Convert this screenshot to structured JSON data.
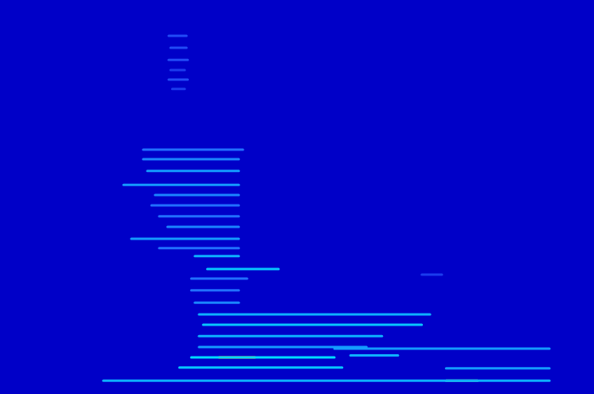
{
  "chart_data": {
    "type": "spectrogram",
    "xlim": [
      0,
      100
    ],
    "ylim": [
      0,
      100
    ],
    "grid": false,
    "tick_labels": false,
    "color_range": [
      0,
      1
    ],
    "streaks": [
      {
        "x": [
          28.4,
          31.4
        ],
        "y": 90.9,
        "value": 0.25
      },
      {
        "x": [
          28.7,
          31.4
        ],
        "y": 87.9,
        "value": 0.25
      },
      {
        "x": [
          28.4,
          31.6
        ],
        "y": 84.8,
        "value": 0.25
      },
      {
        "x": [
          28.7,
          31.1
        ],
        "y": 82.2,
        "value": 0.2
      },
      {
        "x": [
          28.4,
          31.6
        ],
        "y": 79.8,
        "value": 0.25
      },
      {
        "x": [
          29.0,
          31.1
        ],
        "y": 77.4,
        "value": 0.2
      },
      {
        "x": [
          24.1,
          40.9
        ],
        "y": 62.0,
        "value": 0.35
      },
      {
        "x": [
          24.1,
          40.2
        ],
        "y": 59.6,
        "value": 0.4
      },
      {
        "x": [
          24.8,
          40.2
        ],
        "y": 56.6,
        "value": 0.45
      },
      {
        "x": [
          20.8,
          40.2
        ],
        "y": 53.1,
        "value": 0.45
      },
      {
        "x": [
          26.1,
          40.2
        ],
        "y": 50.5,
        "value": 0.4
      },
      {
        "x": [
          25.5,
          40.2
        ],
        "y": 47.9,
        "value": 0.35
      },
      {
        "x": [
          26.8,
          40.2
        ],
        "y": 45.1,
        "value": 0.35
      },
      {
        "x": [
          28.2,
          40.2
        ],
        "y": 42.4,
        "value": 0.4
      },
      {
        "x": [
          22.1,
          40.2
        ],
        "y": 39.4,
        "value": 0.45
      },
      {
        "x": [
          26.8,
          40.2
        ],
        "y": 37.0,
        "value": 0.35
      },
      {
        "x": [
          32.8,
          40.2
        ],
        "y": 35.0,
        "value": 0.5
      },
      {
        "x": [
          34.9,
          46.9
        ],
        "y": 31.7,
        "value": 0.55
      },
      {
        "x": [
          71.0,
          74.4
        ],
        "y": 30.3,
        "value": 0.2
      },
      {
        "x": [
          32.2,
          41.6
        ],
        "y": 29.3,
        "value": 0.35
      },
      {
        "x": [
          32.2,
          40.2
        ],
        "y": 26.3,
        "value": 0.35
      },
      {
        "x": [
          32.8,
          40.2
        ],
        "y": 23.2,
        "value": 0.4
      },
      {
        "x": [
          33.5,
          72.4
        ],
        "y": 20.2,
        "value": 0.5
      },
      {
        "x": [
          34.2,
          71.0
        ],
        "y": 17.6,
        "value": 0.55
      },
      {
        "x": [
          33.5,
          64.3
        ],
        "y": 14.7,
        "value": 0.5
      },
      {
        "x": [
          33.5,
          61.7
        ],
        "y": 11.9,
        "value": 0.45
      },
      {
        "x": [
          56.3,
          92.5
        ],
        "y": 11.5,
        "value": 0.45
      },
      {
        "x": [
          59.0,
          67.0
        ],
        "y": 9.8,
        "value": 0.5
      },
      {
        "x": [
          32.2,
          56.3
        ],
        "y": 9.3,
        "value": 0.6
      },
      {
        "x": [
          36.9,
          42.9
        ],
        "y": 9.3,
        "value": 0.95
      },
      {
        "x": [
          30.2,
          57.6
        ],
        "y": 6.7,
        "value": 0.55
      },
      {
        "x": [
          75.1,
          92.5
        ],
        "y": 6.5,
        "value": 0.45
      },
      {
        "x": [
          17.4,
          92.5
        ],
        "y": 3.4,
        "value": 0.5
      },
      {
        "x": [
          75.1,
          80.4
        ],
        "y": 3.4,
        "value": 0.7
      }
    ]
  }
}
